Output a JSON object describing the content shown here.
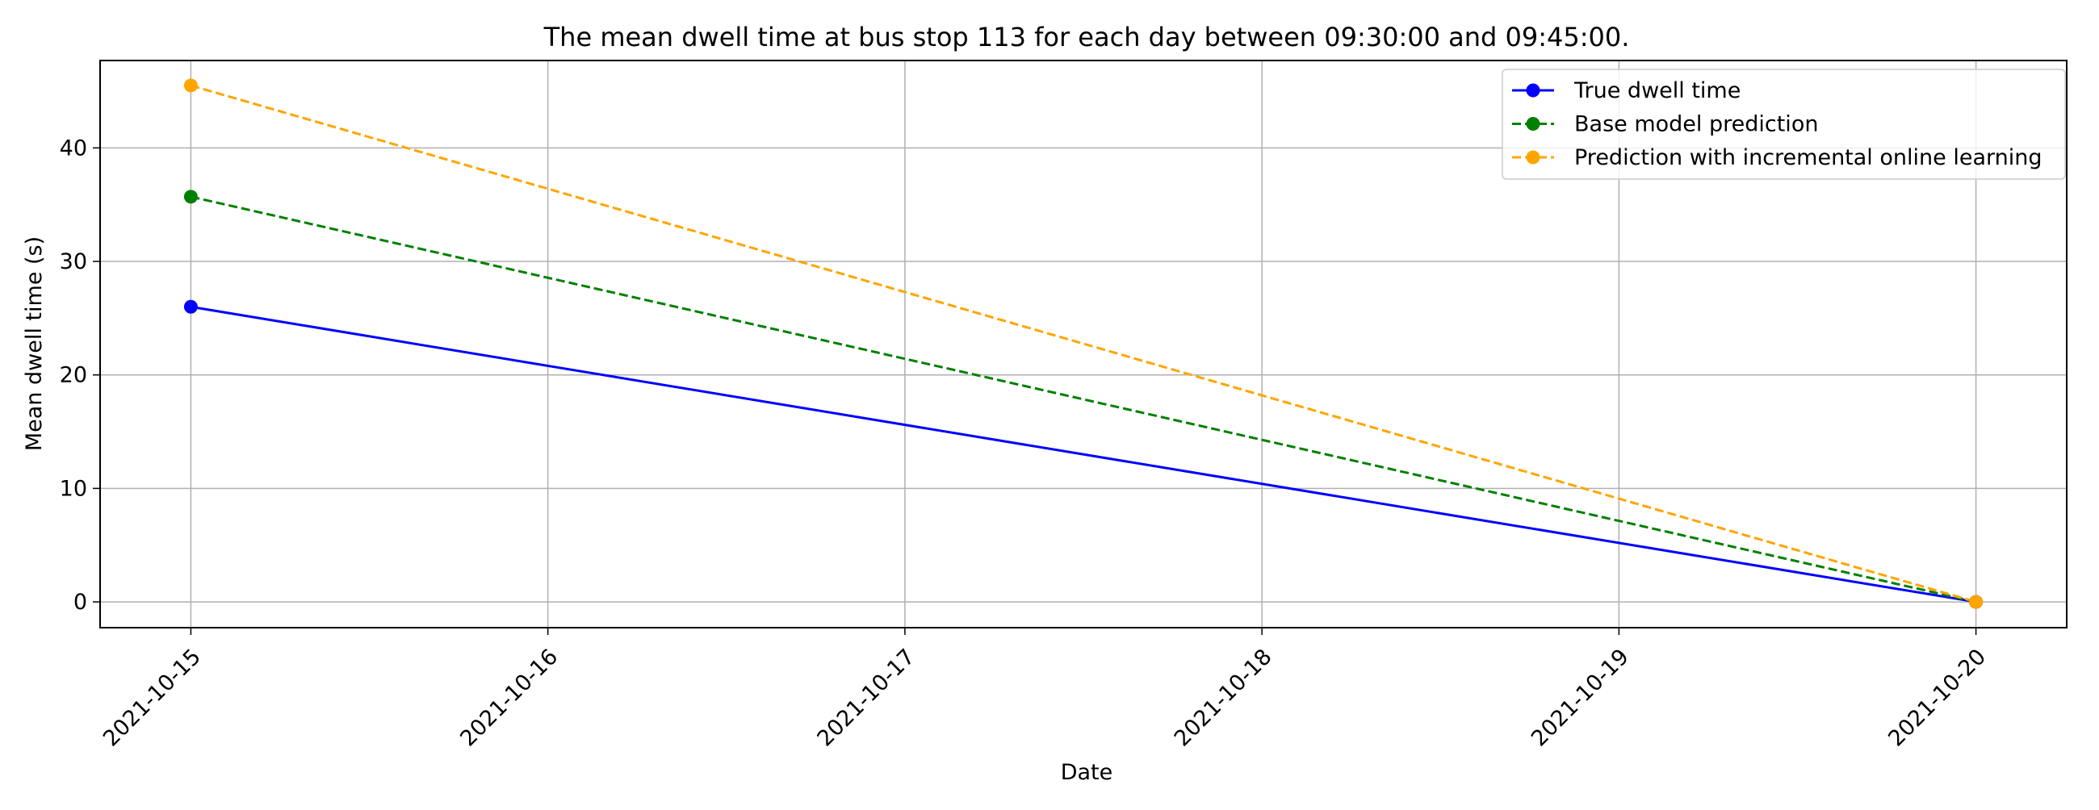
{
  "chart_data": {
    "type": "line",
    "title": "The mean dwell time at bus stop 113 for each day between 09:30:00 and 09:45:00.",
    "xlabel": "Date",
    "ylabel": "Mean dwell time (s)",
    "x_ticks": [
      "2021-10-15",
      "2021-10-16",
      "2021-10-17",
      "2021-10-18",
      "2021-10-19",
      "2021-10-20"
    ],
    "y_ticks": [
      "0",
      "10",
      "20",
      "30",
      "40"
    ],
    "xlim": [
      "2021-10-14T17:54",
      "2021-10-20T06:06"
    ],
    "ylim": [
      -2.27,
      47.7
    ],
    "grid": true,
    "legend_position": "top-right",
    "x": [
      "2021-10-15",
      "2021-10-20"
    ],
    "series": [
      {
        "name": "True dwell time",
        "values": [
          26.0,
          0.0
        ],
        "color": "#0000ff",
        "line_style": "solid",
        "marker": "circle"
      },
      {
        "name": "Base model prediction",
        "values": [
          35.7,
          0.0
        ],
        "color": "#008000",
        "line_style": "dashed",
        "marker": "circle"
      },
      {
        "name": "Prediction with incremental online learning",
        "values": [
          45.5,
          0.0
        ],
        "color": "#ffa500",
        "line_style": "dashed",
        "marker": "circle"
      }
    ]
  }
}
